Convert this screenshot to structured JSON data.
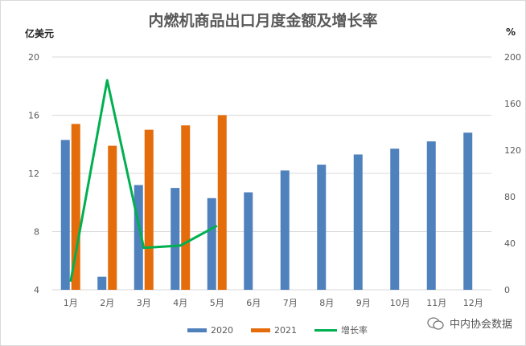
{
  "chart_data": {
    "type": "bar",
    "title": "内燃机商品出口月度金额及增长率",
    "ylabel": "亿美元",
    "y2label": "%",
    "ylim": [
      4,
      20
    ],
    "y2lim": [
      0,
      200
    ],
    "yticks": [
      "4",
      "8",
      "12",
      "16",
      "20"
    ],
    "y2ticks": [
      "0",
      "40",
      "80",
      "120",
      "160",
      "200"
    ],
    "categories": [
      "1月",
      "2月",
      "3月",
      "4月",
      "5月",
      "6月",
      "7月",
      "8月",
      "9月",
      "10月",
      "11月",
      "12月"
    ],
    "series": [
      {
        "name": "2020",
        "type": "bar",
        "axis": "left",
        "color": "#4f81bd",
        "values": [
          14.3,
          4.9,
          11.2,
          11.0,
          10.3,
          10.7,
          12.2,
          12.6,
          13.3,
          13.7,
          14.2,
          14.8
        ]
      },
      {
        "name": "2021",
        "type": "bar",
        "axis": "left",
        "color": "#e46c0a",
        "values": [
          15.4,
          13.9,
          15.0,
          15.3,
          16.0,
          null,
          null,
          null,
          null,
          null,
          null,
          null
        ]
      },
      {
        "name": "增长率",
        "type": "line",
        "axis": "right",
        "color": "#00b050",
        "values": [
          7,
          180,
          36,
          38,
          55,
          null,
          null,
          null,
          null,
          null,
          null,
          null
        ]
      }
    ],
    "grid": true,
    "legend": "bottom"
  },
  "watermark": "中内协会数据"
}
